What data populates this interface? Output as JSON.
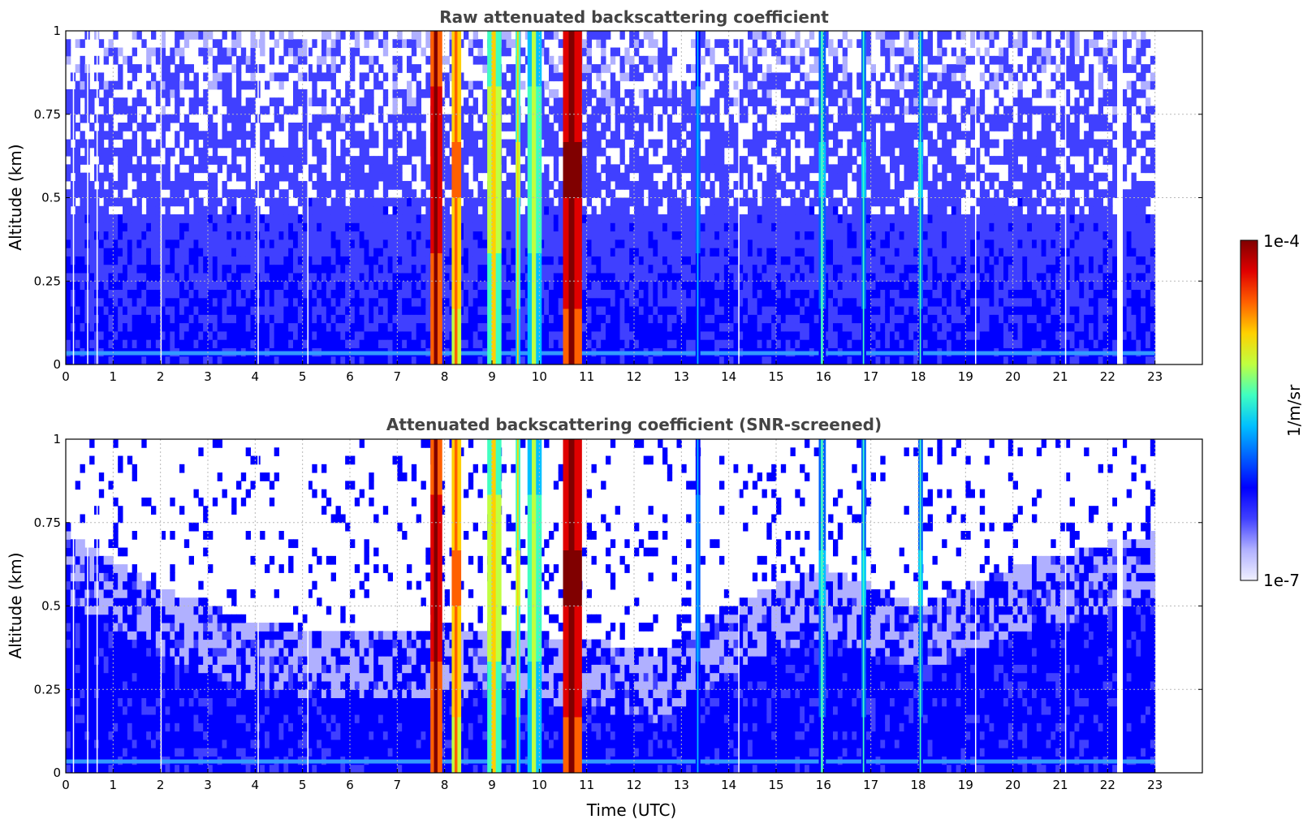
{
  "chart_data": [
    {
      "type": "heatmap",
      "title": "Raw attenuated backscattering coefficient",
      "xlabel": "",
      "ylabel": "Altitude (km)",
      "xlim": [
        0,
        24
      ],
      "ylim": [
        0,
        1
      ],
      "x_ticks": [
        "0",
        "1",
        "2",
        "3",
        "4",
        "5",
        "6",
        "7",
        "8",
        "9",
        "10",
        "11",
        "12",
        "13",
        "14",
        "15",
        "16",
        "17",
        "18",
        "19",
        "20",
        "21",
        "22",
        "23"
      ],
      "y_ticks": [
        "0",
        "0.25",
        "0.5",
        "0.75",
        "1"
      ],
      "data_end_hour": 23,
      "grid": true,
      "screened": false,
      "cloud_features": [
        {
          "time_start": 7.7,
          "time_end": 7.95,
          "intensity": 0.9
        },
        {
          "time_start": 8.15,
          "time_end": 8.35,
          "intensity": 0.75
        },
        {
          "time_start": 8.9,
          "time_end": 9.2,
          "intensity": 0.65
        },
        {
          "time_start": 9.5,
          "time_end": 9.6,
          "intensity": 0.6
        },
        {
          "time_start": 9.75,
          "time_end": 10.05,
          "intensity": 0.55
        },
        {
          "time_start": 10.5,
          "time_end": 10.9,
          "intensity": 0.95
        },
        {
          "time_start": 13.3,
          "time_end": 13.4,
          "intensity": 0.4
        },
        {
          "time_start": 15.9,
          "time_end": 16.05,
          "intensity": 0.45
        },
        {
          "time_start": 16.8,
          "time_end": 16.9,
          "intensity": 0.45
        },
        {
          "time_start": 18.0,
          "time_end": 18.1,
          "intensity": 0.45
        }
      ]
    },
    {
      "type": "heatmap",
      "title": "Attenuated backscattering coefficient (SNR-screened)",
      "xlabel": "Time (UTC)",
      "ylabel": "Altitude (km)",
      "xlim": [
        0,
        24
      ],
      "ylim": [
        0,
        1
      ],
      "x_ticks": [
        "0",
        "1",
        "2",
        "3",
        "4",
        "5",
        "6",
        "7",
        "8",
        "9",
        "10",
        "11",
        "12",
        "13",
        "14",
        "15",
        "16",
        "17",
        "18",
        "19",
        "20",
        "21",
        "22",
        "23"
      ],
      "y_ticks": [
        "0",
        "0.25",
        "0.5",
        "0.75",
        "1"
      ],
      "data_end_hour": 23,
      "grid": true,
      "screened": true,
      "signal_top_km": [
        {
          "time": 0,
          "altitude": 0.72
        },
        {
          "time": 2,
          "altitude": 0.55
        },
        {
          "time": 4,
          "altitude": 0.45
        },
        {
          "time": 6,
          "altitude": 0.42
        },
        {
          "time": 8,
          "altitude": 0.44
        },
        {
          "time": 11,
          "altitude": 0.4
        },
        {
          "time": 12.5,
          "altitude": 0.36
        },
        {
          "time": 14,
          "altitude": 0.5
        },
        {
          "time": 16,
          "altitude": 0.62
        },
        {
          "time": 18,
          "altitude": 0.5
        },
        {
          "time": 20,
          "altitude": 0.62
        },
        {
          "time": 23,
          "altitude": 0.72
        }
      ]
    }
  ],
  "colorbar": {
    "label": "1/m/sr",
    "max_label": "1e-4",
    "min_label": "1e-7",
    "min_value": 1e-07,
    "max_value": 0.0001,
    "scale": "log",
    "colormap": "jet",
    "colors": [
      "#f0f0ff",
      "#b0b0ff",
      "#4040ff",
      "#0000ff",
      "#0060ff",
      "#00c0ff",
      "#40ffc0",
      "#c0ff40",
      "#ffd000",
      "#ff6000",
      "#e00000",
      "#800000"
    ]
  }
}
